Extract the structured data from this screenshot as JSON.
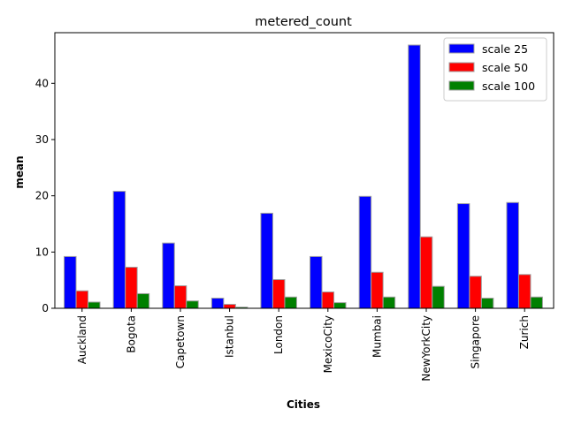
{
  "chart_data": {
    "type": "bar",
    "title": "metered_count",
    "xlabel": "Cities",
    "ylabel": "mean",
    "categories": [
      "Auckland",
      "Bogota",
      "Capetown",
      "Istanbul",
      "London",
      "MexicoCity",
      "Mumbai",
      "NewYorkCity",
      "Singapore",
      "Zurich"
    ],
    "series": [
      {
        "name": "scale 25",
        "color": "#0000ff",
        "values": [
          9.2,
          20.8,
          11.6,
          1.8,
          16.9,
          9.2,
          19.9,
          46.8,
          18.6,
          18.8
        ]
      },
      {
        "name": "scale 50",
        "color": "#ff0000",
        "values": [
          3.1,
          7.3,
          4.0,
          0.7,
          5.1,
          2.9,
          6.4,
          12.7,
          5.7,
          6.0
        ]
      },
      {
        "name": "scale 100",
        "color": "#008000",
        "values": [
          1.1,
          2.6,
          1.3,
          0.2,
          2.0,
          1.0,
          2.0,
          3.9,
          1.8,
          2.0
        ]
      }
    ],
    "ylim": [
      0,
      49
    ],
    "yticks": [
      0,
      10,
      20,
      30,
      40
    ],
    "grid": false,
    "legend_position": "top-right",
    "bar_edge_color": "#a0a0a0"
  }
}
